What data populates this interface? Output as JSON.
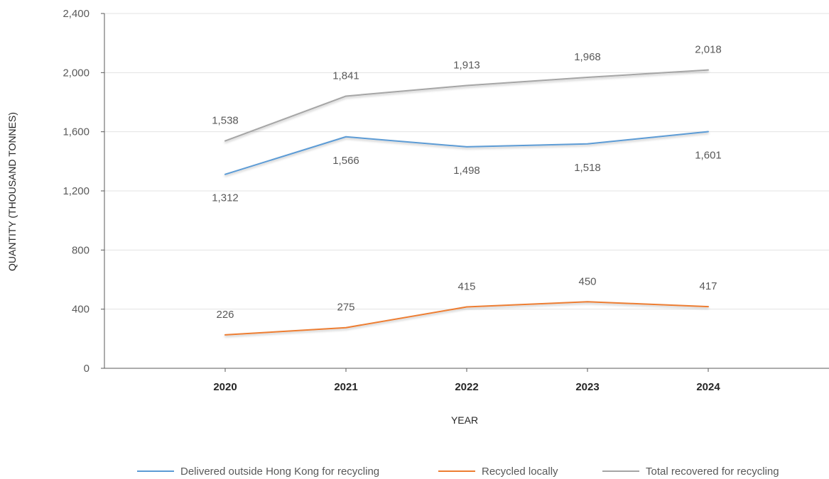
{
  "chart_data": {
    "type": "line",
    "xlabel": "YEAR",
    "ylabel": "QUANTITY (THOUSAND TONNES)",
    "ylim": [
      0,
      2400
    ],
    "yticks": [
      0,
      400,
      800,
      1200,
      1600,
      2000,
      2400
    ],
    "ytick_labels": [
      "0",
      "400",
      "800",
      "1,200",
      "1,600",
      "2,000",
      "2,400"
    ],
    "categories": [
      "2020",
      "2021",
      "2022",
      "2023",
      "2024"
    ],
    "grid": true,
    "legend_position": "bottom",
    "series": [
      {
        "name": "Delivered outside Hong Kong for recycling",
        "color": "#5b9bd5",
        "values": [
          1312,
          1566,
          1498,
          1518,
          1601
        ],
        "labels": [
          "1,312",
          "1,566",
          "1,498",
          "1,518",
          "1,601"
        ],
        "label_position": "below"
      },
      {
        "name": "Recycled locally",
        "color": "#ed7d31",
        "values": [
          226,
          275,
          415,
          450,
          417
        ],
        "labels": [
          "226",
          "275",
          "415",
          "450",
          "417"
        ],
        "label_position": "above"
      },
      {
        "name": "Total recovered for recycling",
        "color": "#a5a5a5",
        "values": [
          1538,
          1841,
          1913,
          1968,
          2018
        ],
        "labels": [
          "1,538",
          "1,841",
          "1,913",
          "1,968",
          "2,018"
        ],
        "label_position": "above"
      }
    ]
  }
}
